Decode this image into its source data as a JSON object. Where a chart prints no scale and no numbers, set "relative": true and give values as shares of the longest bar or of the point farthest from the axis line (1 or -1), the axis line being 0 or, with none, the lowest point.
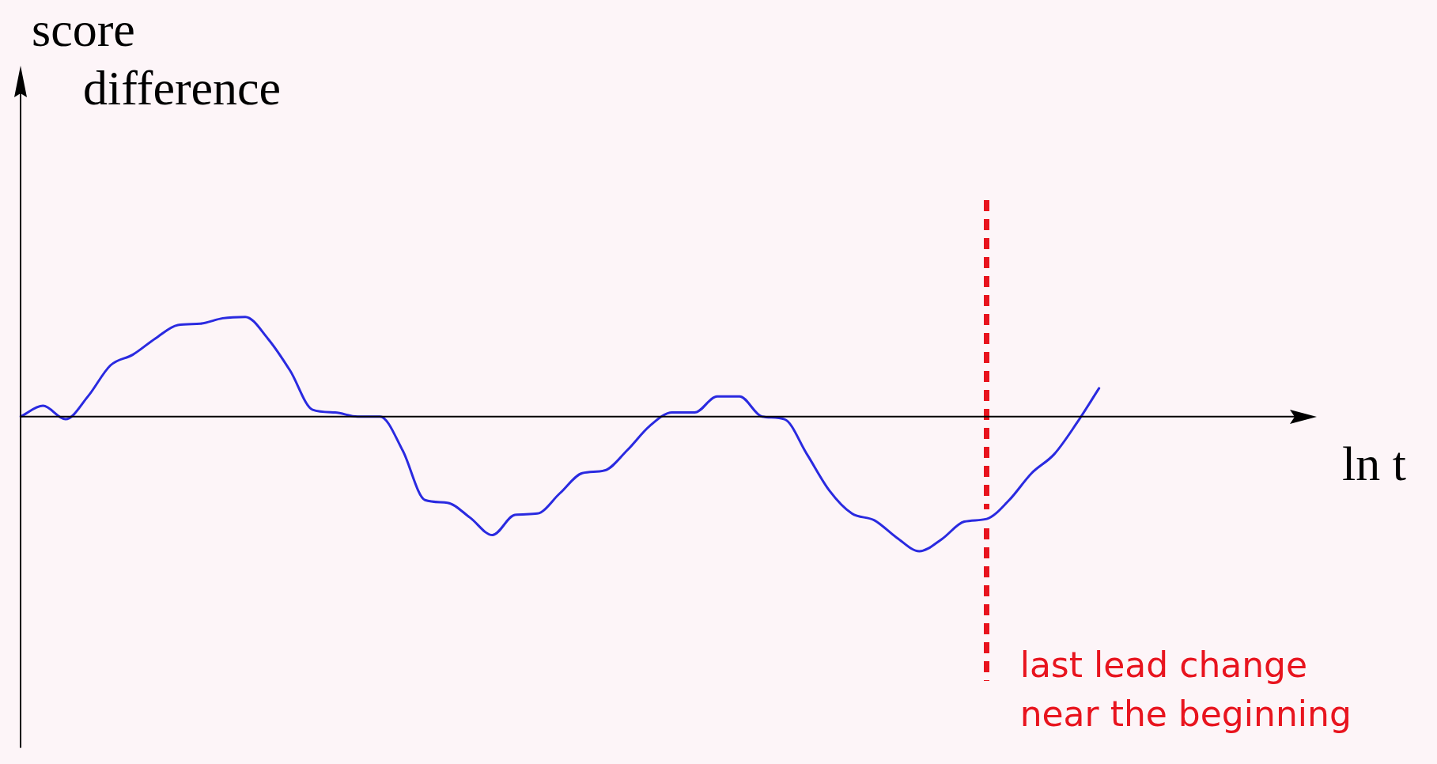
{
  "chart_data": {
    "type": "line",
    "relative": true,
    "ylabel": "score difference",
    "xlabel": "ln t",
    "categories": [
      null,
      null,
      null,
      null,
      null,
      null,
      null,
      null,
      null,
      null,
      null,
      null,
      null,
      null,
      null,
      null,
      null,
      null,
      null,
      null,
      null,
      null,
      null,
      null,
      null,
      null,
      null,
      null,
      null,
      null,
      null,
      null,
      null,
      null,
      null,
      null,
      null,
      null,
      null,
      null,
      null,
      null,
      null,
      null,
      null,
      null,
      null,
      null,
      null,
      null,
      null,
      null,
      null,
      null,
      null,
      null,
      null
    ],
    "series": [
      {
        "color": "#2a2ae0",
        "values": [
          0,
          0.08,
          -0.02,
          0.15,
          0.38,
          0.46,
          0.58,
          0.68,
          0.69,
          0.73,
          0.74,
          0.58,
          0.34,
          0.05,
          0.03,
          0,
          0,
          -0.25,
          -0.62,
          -0.64,
          -0.75,
          -0.88,
          -0.73,
          -0.72,
          -0.57,
          -0.42,
          -0.4,
          -0.25,
          -0.07,
          0.03,
          0.03,
          0.15,
          0.15,
          0,
          -0.02,
          -0.28,
          -0.55,
          -0.72,
          -0.77,
          -0.9,
          -1,
          -0.91,
          -0.78,
          -0.76,
          -0.62,
          -0.42,
          -0.28,
          -0.05,
          0.21,
          null,
          null,
          null,
          null,
          null,
          null,
          null,
          null
        ]
      }
    ],
    "annotations": [
      "last lead change\nnear the beginning"
    ],
    "grid": false,
    "legend": false,
    "marker": "none",
    "line_style": "solid"
  }
}
